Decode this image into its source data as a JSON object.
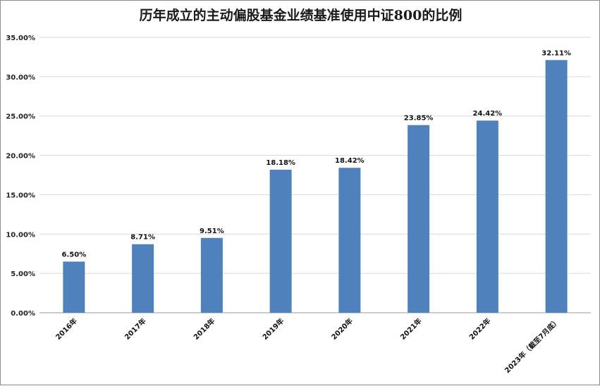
{
  "chart_data": {
    "type": "bar",
    "title": "历年成立的主动偏股基金业绩基准使用中证800的比例",
    "categories": [
      "2016年",
      "2017年",
      "2018年",
      "2019年",
      "2020年",
      "2021年",
      "2022年",
      "2023年（截至7月底）"
    ],
    "values": [
      6.5,
      8.71,
      9.51,
      18.18,
      18.42,
      23.85,
      24.42,
      32.11
    ],
    "data_labels": [
      "6.50%",
      "8.71%",
      "9.51%",
      "18.18%",
      "18.42%",
      "23.85%",
      "24.42%",
      "32.11%"
    ],
    "y_ticks": [
      "0.00%",
      "5.00%",
      "10.00%",
      "15.00%",
      "20.00%",
      "25.00%",
      "30.00%",
      "35.00%"
    ],
    "ylim": [
      0,
      35
    ],
    "grid": true,
    "legend": "none",
    "bar_color": "#4f81bd"
  }
}
